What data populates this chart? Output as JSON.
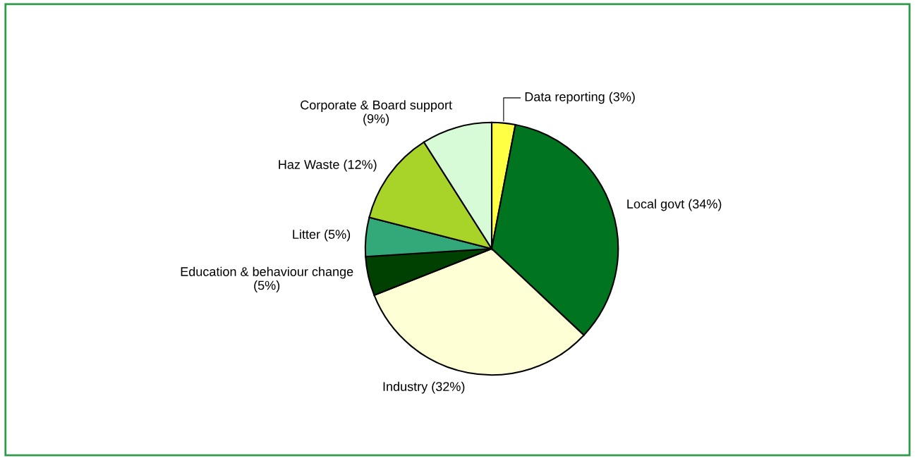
{
  "chart_data": {
    "type": "pie",
    "categories": [
      "Data reporting (3%)",
      "Local govt (34%)",
      "Industry (32%)",
      "Education & behaviour change\n(5%)",
      "Litter (5%)",
      "Haz Waste (12%)",
      "Corporate & Board support\n(9%)"
    ],
    "values": [
      3,
      34,
      32,
      5,
      5,
      12,
      9
    ],
    "colors": [
      "#ffff44",
      "#00741f",
      "#ffffd6",
      "#004000",
      "#33a97a",
      "#a8d42a",
      "#d6fbd6"
    ],
    "legend": false
  }
}
